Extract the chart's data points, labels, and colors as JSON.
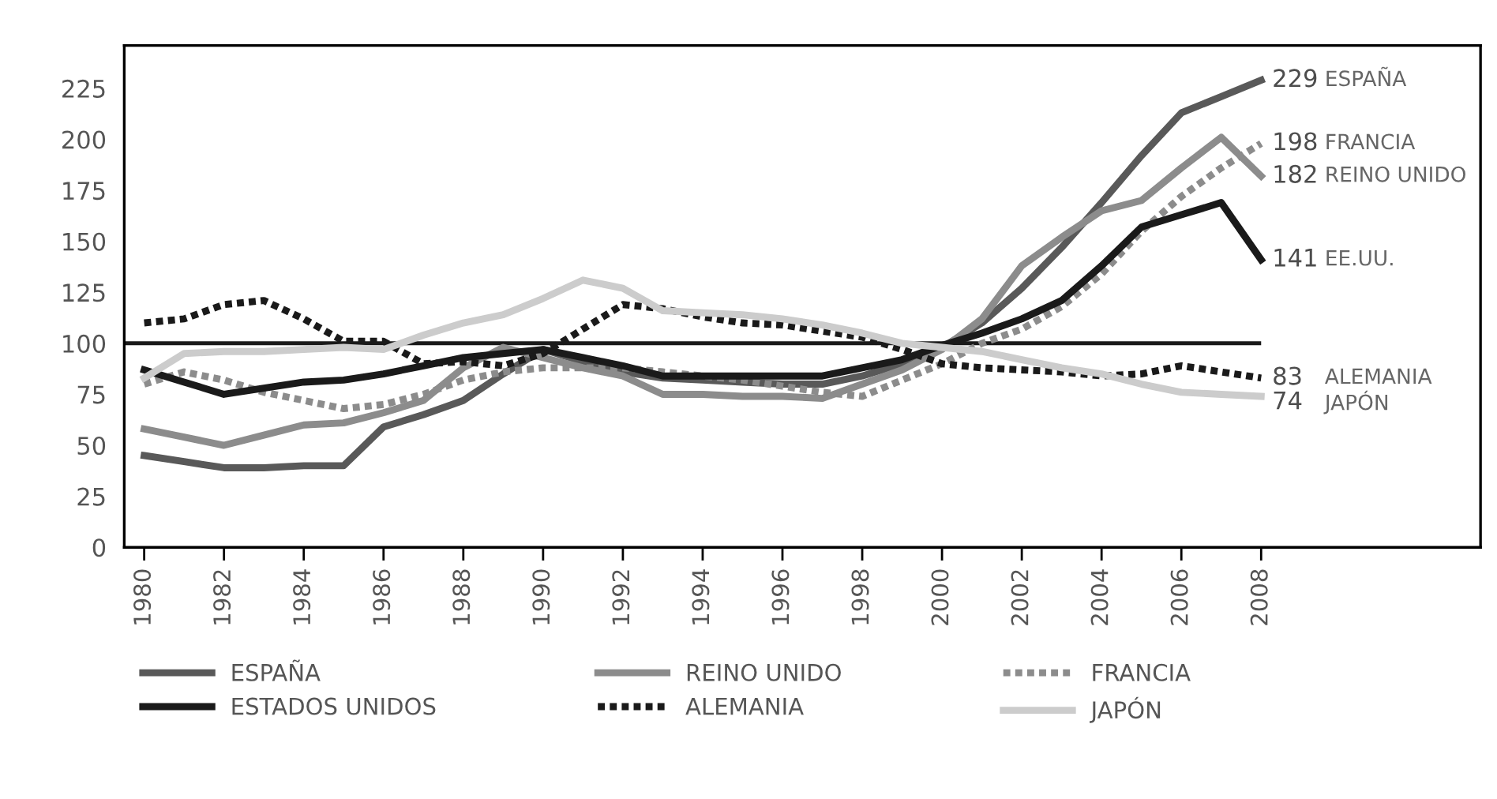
{
  "chart_data": {
    "type": "line",
    "x": [
      1980,
      1981,
      1982,
      1983,
      1984,
      1985,
      1986,
      1987,
      1988,
      1989,
      1990,
      1991,
      1992,
      1993,
      1994,
      1995,
      1996,
      1997,
      1998,
      1999,
      2000,
      2001,
      2002,
      2003,
      2004,
      2005,
      2006,
      2007,
      2008
    ],
    "series": [
      {
        "name": "ESPAÑA",
        "color": "#595959",
        "line_style": "solid",
        "values": [
          45,
          42,
          39,
          39,
          40,
          40,
          59,
          65,
          72,
          85,
          97,
          91,
          86,
          83,
          82,
          81,
          80,
          80,
          84,
          90,
          98,
          110,
          127,
          147,
          169,
          192,
          213,
          221,
          229
        ],
        "value_labels": [
          null,
          null,
          null,
          null,
          null,
          null,
          null,
          null,
          null,
          null,
          null,
          null,
          null,
          null,
          null,
          null,
          null,
          null,
          null,
          null,
          null,
          null,
          null,
          null,
          null,
          null,
          null,
          null,
          "229"
        ]
      },
      {
        "name": "REINO UNIDO",
        "color": "#8c8c8c",
        "line_style": "solid",
        "values": [
          58,
          54,
          50,
          55,
          60,
          61,
          66,
          72,
          88,
          98,
          93,
          88,
          84,
          75,
          75,
          74,
          74,
          73,
          80,
          87,
          97,
          112,
          138,
          152,
          165,
          170,
          186,
          201,
          182
        ],
        "value_labels": [
          null,
          null,
          null,
          null,
          null,
          null,
          null,
          null,
          null,
          null,
          null,
          null,
          null,
          null,
          null,
          null,
          null,
          null,
          null,
          null,
          null,
          null,
          null,
          null,
          null,
          null,
          null,
          null,
          "182"
        ]
      },
      {
        "name": "FRANCIA",
        "color": "#8c8c8c",
        "line_style": "dotted",
        "values": [
          80,
          86,
          82,
          76,
          72,
          68,
          70,
          75,
          82,
          86,
          88,
          88,
          88,
          86,
          84,
          82,
          79,
          76,
          74,
          82,
          90,
          100,
          107,
          118,
          134,
          155,
          172,
          186,
          198
        ],
        "value_labels": [
          null,
          null,
          null,
          null,
          null,
          null,
          null,
          null,
          null,
          null,
          null,
          null,
          null,
          null,
          null,
          null,
          null,
          null,
          null,
          null,
          null,
          null,
          null,
          null,
          null,
          null,
          null,
          null,
          "198"
        ]
      },
      {
        "name": "ESTADOS UNIDOS",
        "color": "#1a1a1a",
        "line_style": "solid",
        "values": [
          87,
          81,
          75,
          78,
          81,
          82,
          85,
          89,
          93,
          95,
          97,
          93,
          89,
          84,
          84,
          84,
          84,
          84,
          88,
          92,
          99,
          105,
          112,
          121,
          138,
          157,
          163,
          169,
          141
        ],
        "value_labels": [
          null,
          null,
          null,
          null,
          null,
          null,
          null,
          null,
          null,
          null,
          null,
          null,
          null,
          null,
          null,
          null,
          null,
          null,
          null,
          null,
          null,
          null,
          null,
          null,
          null,
          null,
          null,
          null,
          "141"
        ]
      },
      {
        "name": "ALEMANIA",
        "color": "#1a1a1a",
        "line_style": "dotted",
        "values": [
          110,
          112,
          119,
          121,
          112,
          101,
          101,
          90,
          91,
          89,
          95,
          107,
          119,
          117,
          113,
          110,
          109,
          106,
          103,
          97,
          90,
          88,
          87,
          86,
          84,
          85,
          89,
          86,
          83
        ],
        "value_labels": [
          null,
          null,
          null,
          null,
          null,
          null,
          null,
          null,
          null,
          null,
          null,
          null,
          null,
          null,
          null,
          null,
          null,
          null,
          null,
          null,
          null,
          null,
          null,
          null,
          null,
          null,
          null,
          null,
          "83"
        ]
      },
      {
        "name": "JAPÓN",
        "color": "#cccccc",
        "line_style": "solid",
        "values": [
          83,
          95,
          96,
          96,
          97,
          98,
          97,
          104,
          110,
          114,
          122,
          131,
          127,
          116,
          115,
          114,
          112,
          109,
          105,
          100,
          98,
          96,
          92,
          88,
          85,
          80,
          76,
          75,
          74
        ],
        "value_labels": [
          null,
          null,
          null,
          null,
          null,
          null,
          null,
          null,
          null,
          null,
          null,
          null,
          null,
          null,
          null,
          null,
          null,
          null,
          null,
          null,
          null,
          null,
          null,
          null,
          null,
          null,
          null,
          null,
          "74"
        ]
      }
    ],
    "annotations": [
      "ESPAÑA",
      "FRANCIA",
      "REINO UNIDO",
      "EE.UU.",
      "ALEMANIA",
      "JAPÓN"
    ],
    "ref_lines": [
      {
        "axis": "y",
        "value": 100,
        "color": "#1a1a1a"
      }
    ],
    "xlim": [
      1979.5,
      2013.5
    ],
    "ylim": [
      0,
      246
    ],
    "xticks": [
      1980,
      1982,
      1984,
      1986,
      1988,
      1990,
      1992,
      1994,
      1996,
      1998,
      2000,
      2002,
      2004,
      2006,
      2008
    ],
    "yticks": [
      0,
      25,
      50,
      75,
      100,
      125,
      150,
      175,
      200,
      225
    ],
    "grid": false,
    "legend": "bottom",
    "marker": "none"
  }
}
